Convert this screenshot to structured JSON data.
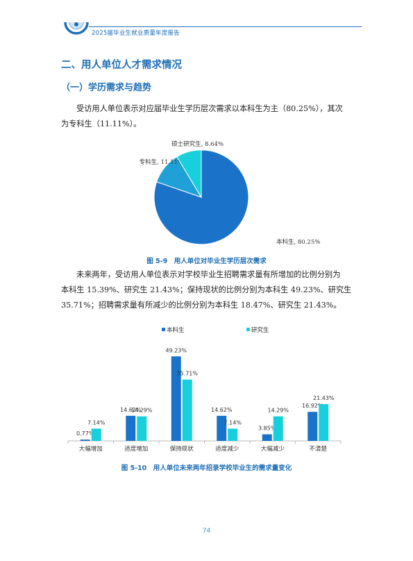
{
  "header": {
    "title": "2025届毕业生就业质量年度报告"
  },
  "section": {
    "heading": "二、用人单位人才需求情况",
    "subheading": "（一）学历需求与趋势"
  },
  "paragraphs": {
    "p1_line1": "受访用人单位表示对应届毕业生学历层次需求以本科生为主（80.25%），其次",
    "p1_line2": "为专科生（11.11%）。",
    "p2_line1": "未来两年，受访用人单位表示对学校毕业生招聘需求量有所增加的比例分别为",
    "p2_line2": "本科生 15.39%、研究生 21.43%；保持现状的比例分别为本科生 49.23%、研究生",
    "p2_line3": "35.71%；招聘需求量有所减少的比例分别为本科生 18.47%、研究生 21.43%。"
  },
  "captions": {
    "fig1": "图 5-9　用人单位对毕业生学历层次需求",
    "fig2": "图 5-10　用人单位未来两年招录学校毕业生的需求量变化"
  },
  "page_number": "74",
  "colors": {
    "brand": "#1f6fb5",
    "undergrad": "#1a73c8",
    "graduate": "#17d0dc",
    "vocational": "#1fa1d8"
  },
  "chart_data": [
    {
      "type": "pie",
      "slices": [
        {
          "label": "本科生, 80.25%",
          "name": "本科生",
          "value": 80.25,
          "color": "#1a73c8"
        },
        {
          "label": "专科生, 11.11%",
          "name": "专科生",
          "value": 11.11,
          "color": "#1fa1d8"
        },
        {
          "label": "硕士研究生, 8.64%",
          "name": "硕士研究生",
          "value": 8.64,
          "color": "#17d0dc"
        }
      ]
    },
    {
      "type": "bar",
      "categories": [
        "大幅增加",
        "适度增加",
        "保持现状",
        "适度减少",
        "大幅减少",
        "不清楚"
      ],
      "series": [
        {
          "name": "本科生",
          "color": "#1a73c8",
          "values": [
            0.77,
            14.62,
            49.23,
            14.62,
            3.85,
            16.92
          ]
        },
        {
          "name": "研究生",
          "color": "#17d0dc",
          "values": [
            7.14,
            14.29,
            35.71,
            7.14,
            14.29,
            21.43
          ]
        }
      ],
      "data_labels": [
        [
          "0.77%",
          "14.62%",
          "49.23%",
          "14.62%",
          "3.85%",
          "16.92%"
        ],
        [
          "7.14%",
          "14.29%",
          "35.71%",
          "7.14%",
          "14.29%",
          "21.43%"
        ]
      ],
      "ylim": [
        0,
        55
      ],
      "legend": "top-center",
      "grid": false
    }
  ]
}
